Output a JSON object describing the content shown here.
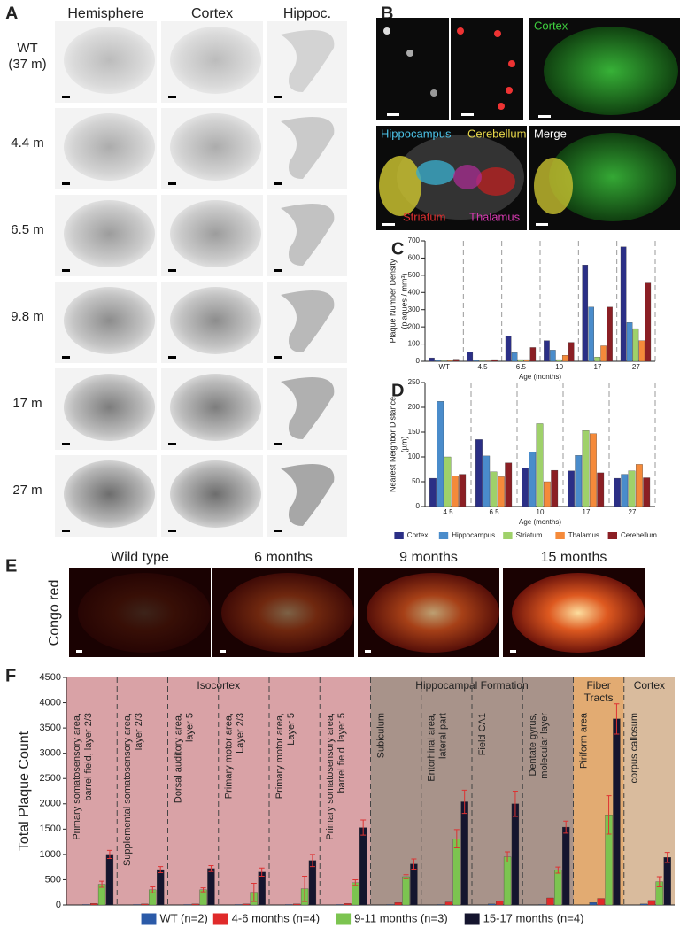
{
  "panels": {
    "A": {
      "label": "A",
      "columns": [
        "Hemisphere",
        "Cortex",
        "Hippoc."
      ],
      "rows": [
        [
          "WT",
          "(37 m)"
        ],
        [
          "4.4 m"
        ],
        [
          "6.5 m"
        ],
        [
          "9.8 m"
        ],
        [
          "17 m"
        ],
        [
          "27 m"
        ]
      ]
    },
    "B": {
      "label": "B",
      "cortex": "Cortex",
      "hippocampus": "Hippocampus",
      "cerebellum": "Cerebellum",
      "striatum": "Striatum",
      "thalamus": "Thalamus",
      "merge": "Merge"
    },
    "E": {
      "label": "E",
      "stain": "Congo red",
      "titles": [
        "Wild type",
        "6 months",
        "9 months",
        "15 months"
      ]
    }
  },
  "chart_data": [
    {
      "type": "bar",
      "panel": "C",
      "ylabel": [
        "Plaque Number Density",
        "(plaques / mm³)"
      ],
      "xlabel": "Age (months)",
      "categories": [
        "WT",
        "4.5",
        "6.5",
        "10",
        "17",
        "27"
      ],
      "series": [
        {
          "name": "Cortex",
          "color": "#2b2f86",
          "values": [
            20,
            55,
            148,
            120,
            560,
            665
          ]
        },
        {
          "name": "Hippocampus",
          "color": "#4a8ccb",
          "values": [
            5,
            5,
            50,
            65,
            315,
            225
          ]
        },
        {
          "name": "Striatum",
          "color": "#9fd16a",
          "values": [
            3,
            3,
            10,
            10,
            25,
            190
          ]
        },
        {
          "name": "Thalamus",
          "color": "#f58a3a",
          "values": [
            5,
            3,
            10,
            35,
            90,
            120
          ]
        },
        {
          "name": "Cerebellum",
          "color": "#8b1f24",
          "values": [
            12,
            10,
            80,
            110,
            315,
            455
          ]
        }
      ],
      "ylim": [
        0,
        700
      ],
      "yticks": [
        0,
        100,
        200,
        300,
        400,
        500,
        600,
        700
      ],
      "grid": false
    },
    {
      "type": "bar",
      "panel": "D",
      "ylabel": [
        "Nearest Neighbor Distance",
        "(µm)"
      ],
      "xlabel": "Age (months)",
      "categories": [
        "4.5",
        "6.5",
        "10",
        "17",
        "27"
      ],
      "series": [
        {
          "name": "Cortex",
          "color": "#2b2f86",
          "values": [
            57,
            135,
            78,
            72,
            57
          ]
        },
        {
          "name": "Hippocampus",
          "color": "#4a8ccb",
          "values": [
            212,
            102,
            110,
            103,
            65
          ]
        },
        {
          "name": "Striatum",
          "color": "#9fd16a",
          "values": [
            100,
            70,
            167,
            153,
            72
          ]
        },
        {
          "name": "Thalamus",
          "color": "#f58a3a",
          "values": [
            62,
            60,
            50,
            147,
            85
          ]
        },
        {
          "name": "Cerebellum",
          "color": "#8b1f24",
          "values": [
            65,
            88,
            73,
            68,
            58
          ]
        }
      ],
      "ylim": [
        0,
        250
      ],
      "yticks": [
        0,
        50,
        100,
        150,
        200,
        250
      ],
      "grid": false,
      "legend": "bottom"
    },
    {
      "type": "bar",
      "panel": "F",
      "ylabel": [
        "Total Plaque Count"
      ],
      "groups": [
        {
          "name": [
            "Isocortex"
          ],
          "color": "#d9a2a6",
          "count": 6
        },
        {
          "name": [
            "Hippocampal Formation"
          ],
          "color": "#a8938a",
          "count": 4
        },
        {
          "name": [
            "Fiber",
            "Tracts"
          ],
          "color": "#e2ab72",
          "count": 1
        },
        {
          "name": [
            "Cortex"
          ],
          "color": "#d9bb9d",
          "count": 1
        }
      ],
      "categories": [
        [
          "Primary somatosensory area,",
          "barrel field, layer 2/3"
        ],
        [
          "Supplemental somatosensory area,",
          "layer 2/3"
        ],
        [
          "Dorsal auditory area,",
          "layer 5"
        ],
        [
          "Primary motor area,",
          "Layer 2/3"
        ],
        [
          "Primary motor area,",
          "Layer 5"
        ],
        [
          "Primary somatosensory area,",
          "barrel field, layer 5"
        ],
        [
          "Subiculum"
        ],
        [
          "Entorhinal area,",
          "lateral part"
        ],
        [
          "Field CA1"
        ],
        [
          "Dentate gyrus,",
          "molecular layer"
        ],
        [
          "Piriform area"
        ],
        [
          "corpus callosum"
        ]
      ],
      "series": [
        {
          "name": "WT (n=2)",
          "color": "#2b5aa8",
          "values": [
            10,
            10,
            10,
            10,
            10,
            10,
            10,
            10,
            20,
            10,
            50,
            20
          ]
        },
        {
          "name": "4-6 months (n=4)",
          "color": "#e02a2a",
          "values": [
            30,
            20,
            20,
            20,
            20,
            30,
            50,
            60,
            80,
            140,
            130,
            90
          ]
        },
        {
          "name": "9-11 months (n=3)",
          "color": "#7cc450",
          "values": [
            410,
            300,
            300,
            250,
            320,
            440,
            560,
            1310,
            950,
            690,
            1780,
            460
          ],
          "errors": [
            60,
            60,
            40,
            180,
            250,
            60,
            40,
            180,
            100,
            60,
            380,
            100
          ]
        },
        {
          "name": "15-17 months (n=4)",
          "color": "#15152e",
          "values": [
            1000,
            700,
            720,
            650,
            880,
            1530,
            810,
            2040,
            2000,
            1540,
            3680,
            940
          ],
          "errors": [
            80,
            60,
            60,
            80,
            120,
            150,
            100,
            230,
            250,
            120,
            300,
            100
          ]
        }
      ],
      "ylim": [
        0,
        4500
      ],
      "yticks": [
        0,
        500,
        1000,
        1500,
        2000,
        2500,
        3000,
        3500,
        4000,
        4500
      ],
      "grid": false,
      "legend": "bottom"
    }
  ]
}
